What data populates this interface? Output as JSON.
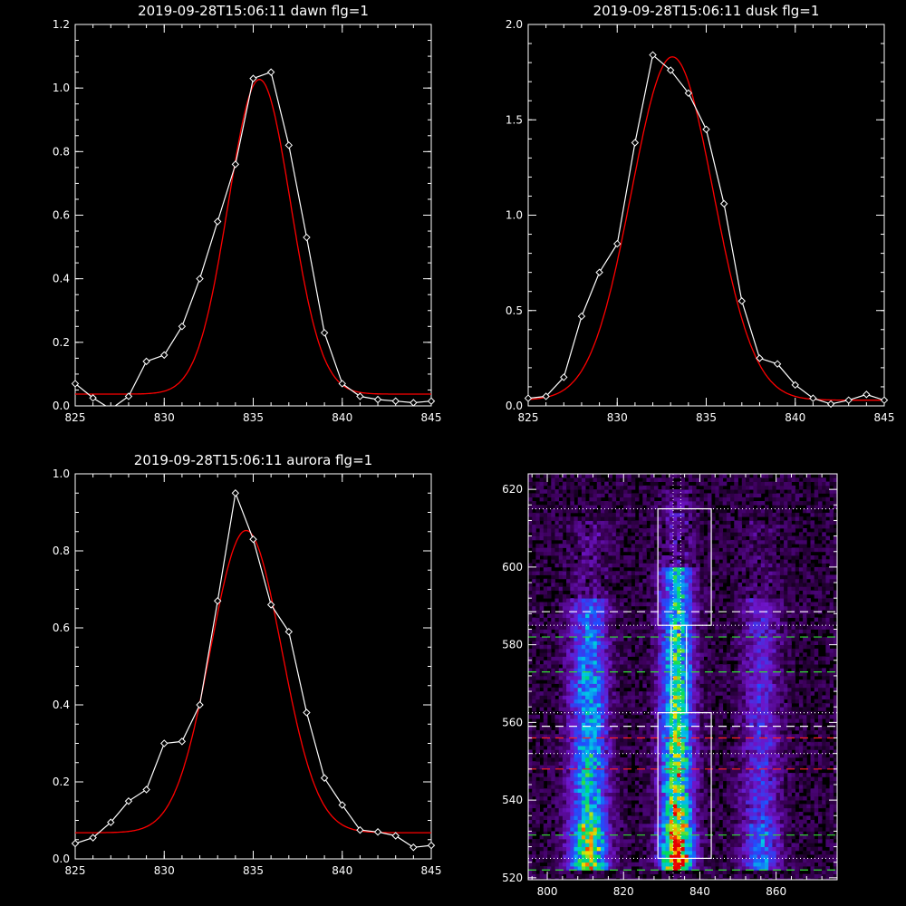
{
  "colors": {
    "background": "#000000",
    "axis": "#ffffff",
    "data_line": "#ffffff",
    "fit_line": "#ff0000",
    "box": "#ffffff",
    "dash_white": "#ffffff",
    "dash_green": "#33dd33",
    "dash_red": "#ff2020",
    "dot_line": "#ffffff"
  },
  "chart_data": [
    {
      "type": "line",
      "title": "2019-09-28T15:06:11 dawn flg=1",
      "xlim": [
        825,
        845
      ],
      "ylim": [
        0,
        1.2
      ],
      "xticks": [
        825,
        830,
        835,
        840,
        845
      ],
      "yticks": [
        0.0,
        0.2,
        0.4,
        0.6,
        0.8,
        1.0,
        1.2
      ],
      "ytick_labels": [
        "0.0",
        "0.2",
        "0.4",
        "0.6",
        "0.8",
        "1.0",
        "1.2"
      ],
      "x": [
        825,
        826,
        827,
        828,
        829,
        830,
        831,
        832,
        833,
        834,
        835,
        836,
        837,
        838,
        839,
        840,
        841,
        842,
        843,
        844,
        845
      ],
      "series": [
        {
          "values": [
            0.07,
            0.025,
            -0.01,
            0.03,
            0.14,
            0.16,
            0.25,
            0.4,
            0.58,
            0.76,
            1.03,
            1.05,
            0.82,
            0.53,
            0.23,
            0.07,
            0.03,
            0.02,
            0.015,
            0.01,
            0.015
          ],
          "marker": "diamond"
        }
      ],
      "fit": {
        "amplitude": 0.99,
        "center": 835.35,
        "sigma": 1.75,
        "offset": 0.037
      }
    },
    {
      "type": "line",
      "title": "2019-09-28T15:06:11 dusk flg=1",
      "xlim": [
        825,
        845
      ],
      "ylim": [
        0,
        2.0
      ],
      "xticks": [
        825,
        830,
        835,
        840,
        845
      ],
      "yticks": [
        0.0,
        0.5,
        1.0,
        1.5,
        2.0
      ],
      "ytick_labels": [
        "0.0",
        "0.5",
        "1.0",
        "1.5",
        "2.0"
      ],
      "x": [
        825,
        826,
        827,
        828,
        829,
        830,
        831,
        832,
        833,
        834,
        835,
        836,
        837,
        838,
        839,
        840,
        841,
        842,
        843,
        844,
        845
      ],
      "series": [
        {
          "values": [
            0.04,
            0.05,
            0.15,
            0.47,
            0.7,
            0.85,
            1.38,
            1.84,
            1.76,
            1.64,
            1.45,
            1.06,
            0.55,
            0.25,
            0.22,
            0.11,
            0.04,
            0.01,
            0.03,
            0.06,
            0.03
          ],
          "marker": "diamond"
        }
      ],
      "fit": {
        "amplitude": 1.8,
        "center": 833.1,
        "sigma": 2.3,
        "offset": 0.03
      }
    },
    {
      "type": "line",
      "title": "2019-09-28T15:06:11 aurora flg=1",
      "xlim": [
        825,
        845
      ],
      "ylim": [
        0,
        1.0
      ],
      "xticks": [
        825,
        830,
        835,
        840,
        845
      ],
      "yticks": [
        0.0,
        0.2,
        0.4,
        0.6,
        0.8,
        1.0
      ],
      "ytick_labels": [
        "0.0",
        "0.2",
        "0.4",
        "0.6",
        "0.8",
        "1.0"
      ],
      "x": [
        825,
        826,
        827,
        828,
        829,
        830,
        831,
        832,
        833,
        834,
        835,
        836,
        837,
        838,
        839,
        840,
        841,
        842,
        843,
        844,
        845
      ],
      "series": [
        {
          "values": [
            0.04,
            0.055,
            0.095,
            0.15,
            0.18,
            0.3,
            0.305,
            0.4,
            0.67,
            0.95,
            0.83,
            0.66,
            0.59,
            0.38,
            0.21,
            0.14,
            0.075,
            0.07,
            0.06,
            0.03,
            0.035
          ],
          "marker": "diamond"
        }
      ],
      "fit": {
        "amplitude": 0.785,
        "center": 834.6,
        "sigma": 2.0,
        "offset": 0.068
      }
    },
    {
      "type": "heatmap",
      "title": "",
      "xlim": [
        795,
        876
      ],
      "ylim": [
        519.5,
        624
      ],
      "xticks": [
        800,
        820,
        840,
        860
      ],
      "yticks": [
        520,
        540,
        560,
        580,
        600,
        620
      ],
      "bins": {
        "x_step": 1,
        "y_step": 1
      },
      "emission_bands": [
        {
          "center": 811,
          "width": 3.5,
          "y_from": 522,
          "y_to": 592,
          "peak": 0.75
        },
        {
          "center": 834,
          "width": 3.0,
          "y_from": 522,
          "y_to": 600,
          "peak": 1.0
        },
        {
          "center": 856,
          "width": 3.5,
          "y_from": 522,
          "y_to": 592,
          "peak": 0.4
        }
      ],
      "boxes": [
        {
          "x0": 829,
          "x1": 843,
          "y0": 585,
          "y1": 615
        },
        {
          "x0": 829,
          "x1": 843,
          "y0": 525,
          "y1": 562.5
        },
        {
          "x0": 832.5,
          "x1": 836.5,
          "y0": 562.5,
          "y1": 585
        }
      ],
      "vertical_dotted_x": [
        833,
        835
      ],
      "horizontal_lines": [
        {
          "y": 615,
          "style": "dotted",
          "color": "dot_line"
        },
        {
          "y": 588.5,
          "style": "dashed",
          "color": "dash_white"
        },
        {
          "y": 585,
          "style": "dotted",
          "color": "dot_line"
        },
        {
          "y": 582,
          "style": "dashed",
          "color": "dash_green"
        },
        {
          "y": 573,
          "style": "dashed",
          "color": "dash_green"
        },
        {
          "y": 562.5,
          "style": "dotted",
          "color": "dot_line"
        },
        {
          "y": 559,
          "style": "dashed",
          "color": "dash_white"
        },
        {
          "y": 556,
          "style": "dashed",
          "color": "dash_red"
        },
        {
          "y": 552,
          "style": "dotted",
          "color": "dot_line"
        },
        {
          "y": 548,
          "style": "dashed",
          "color": "dash_red"
        },
        {
          "y": 531,
          "style": "dashed",
          "color": "dash_green"
        },
        {
          "y": 525,
          "style": "dotted",
          "color": "dot_line"
        },
        {
          "y": 522,
          "style": "dashed",
          "color": "dash_green"
        }
      ]
    }
  ]
}
